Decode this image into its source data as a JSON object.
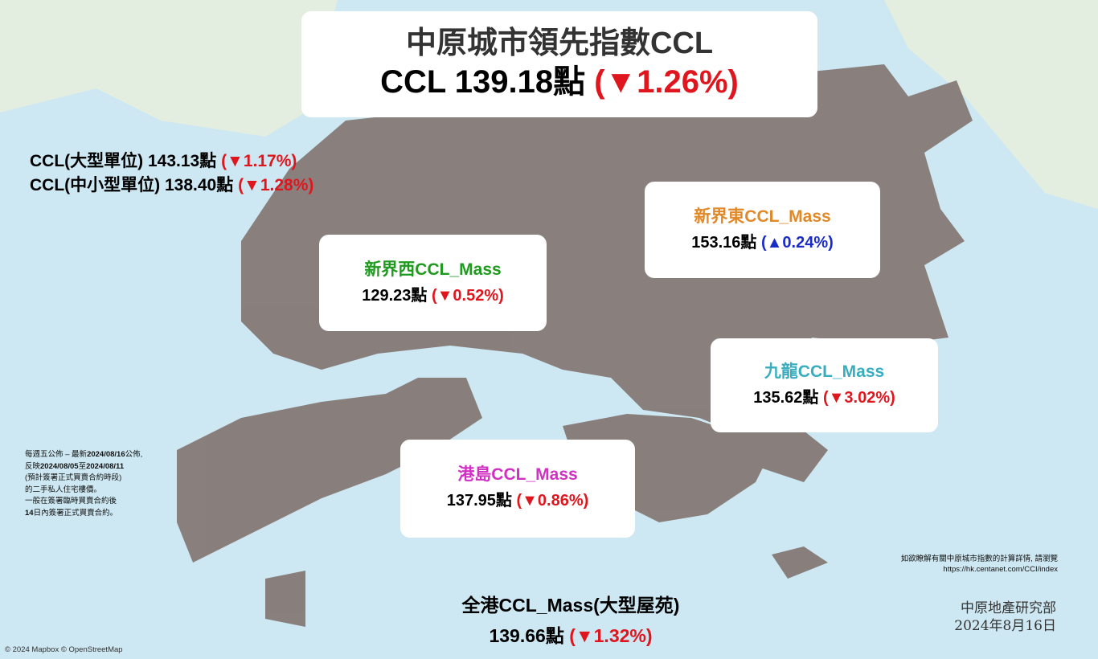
{
  "header": {
    "title": "中原城市領先指數CCL",
    "ccl_label": "CCL 139.18點",
    "ccl_change": "(▼1.26%)"
  },
  "sub_indices": [
    {
      "label": "CCL(大型單位) 143.13點",
      "change": "(▼1.17%)"
    },
    {
      "label": "CCL(中小型單位) 138.40點",
      "change": "(▼1.28%)"
    }
  ],
  "regions": [
    {
      "name": "新界東CCL_Mass",
      "value": "153.16點",
      "change": "(▲0.24%)",
      "color": "#e0892a",
      "direction": "up"
    },
    {
      "name": "新界西CCL_Mass",
      "value": "129.23點",
      "change": "(▼0.52%)",
      "color": "#1f9a1f",
      "direction": "down"
    },
    {
      "name": "九龍CCL_Mass",
      "value": "135.62點",
      "change": "(▼3.02%)",
      "color": "#38adc0",
      "direction": "down"
    },
    {
      "name": "港島CCL_Mass",
      "value": "137.95點",
      "change": "(▼0.86%)",
      "color": "#d031c2",
      "direction": "down"
    }
  ],
  "mass": {
    "label": "全港CCL_Mass(大型屋苑)",
    "value": "139.66點",
    "change": "(▼1.32%)"
  },
  "note": {
    "l1a": "每週五公佈 – 最新",
    "l1b": "2024/08/16",
    "l1c": "公佈,",
    "l2a": "反映",
    "l2b": "2024/08/05",
    "l2c": "至",
    "l2d": "2024/08/11",
    "l3": "(預計簽署正式買賣合約時段)",
    "l4": "的二手私人住宅樓價。",
    "l5": "一般在簽署臨時買賣合約後",
    "l6a": "14",
    "l6b": "日內簽署正式買賣合約。"
  },
  "info": {
    "text": "如欲瞭解有關中原城市指數的計算詳情, 請瀏覽",
    "url": "https://hk.centanet.com/CCI/index"
  },
  "footer": {
    "org": "中原地產研究部",
    "date": "2024年8月16日"
  },
  "attribution": "© 2024 Mapbox © OpenStreetMap",
  "colors": {
    "down": "#e0161e",
    "up": "#1a2cc8",
    "land": "#857a76",
    "sea": "#cde8f2"
  }
}
